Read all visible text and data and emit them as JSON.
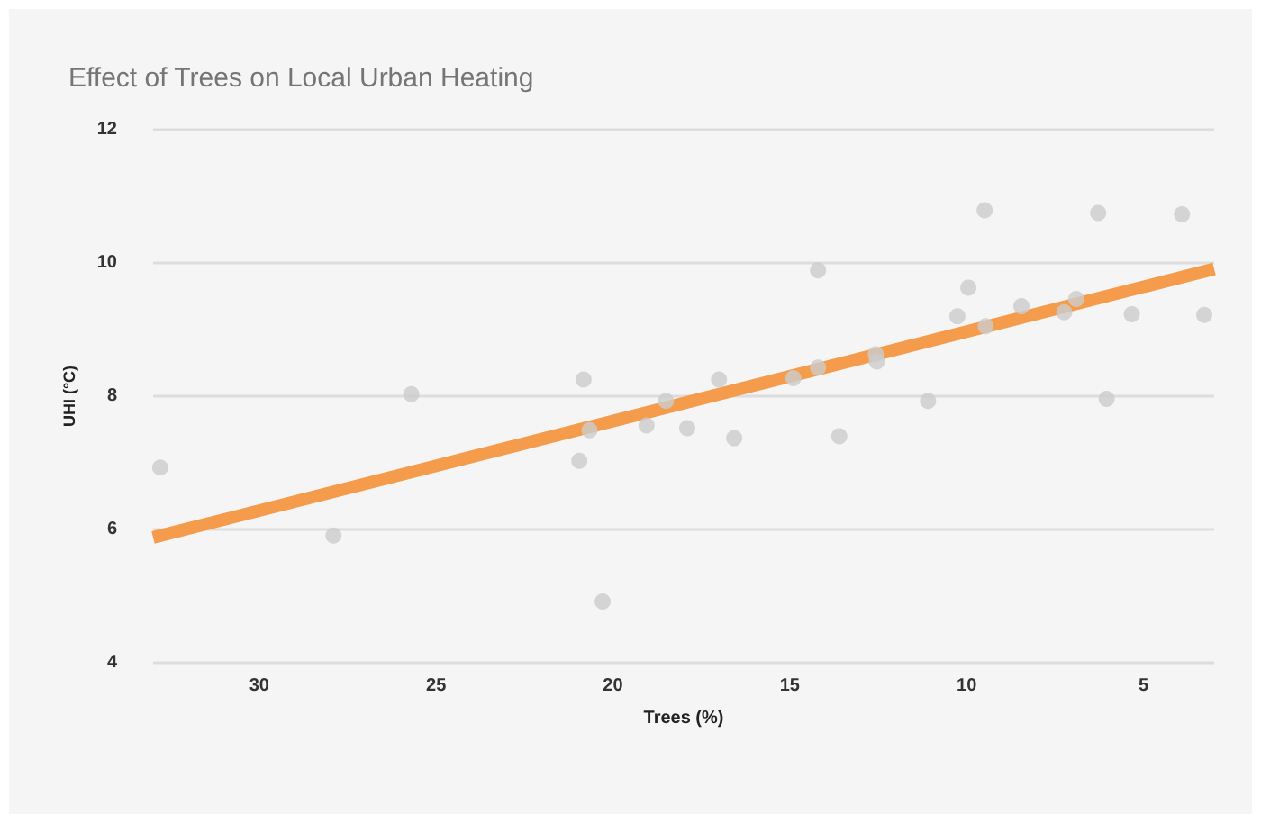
{
  "chart_data": {
    "type": "scatter",
    "title": "Effect of Trees on Local Urban Heating",
    "xlabel": "Trees (%)",
    "ylabel": "UHI (°C)",
    "xlim": [
      33,
      3
    ],
    "xticks": [
      30,
      25,
      20,
      15,
      10,
      5
    ],
    "ylim": [
      4,
      12
    ],
    "yticks": [
      4,
      6,
      8,
      10,
      12
    ],
    "grid": "y",
    "marker": "circle",
    "series": [
      {
        "color": "#cccccc",
        "x": [
          32.8,
          27.9,
          25.7,
          20.83,
          20.95,
          20.66,
          20.29,
          19.05,
          18.5,
          17.9,
          17.0,
          16.57,
          14.9,
          14.2,
          14.2,
          13.6,
          12.57,
          12.54,
          11.09,
          10.26,
          9.95,
          9.49,
          9.46,
          8.45,
          7.24,
          6.9,
          6.28,
          6.04,
          5.33,
          3.91,
          3.28
        ],
        "values": [
          6.93,
          5.91,
          8.03,
          8.25,
          7.03,
          7.49,
          4.92,
          7.56,
          7.93,
          7.52,
          8.25,
          7.37,
          8.27,
          8.43,
          9.89,
          7.4,
          8.63,
          8.52,
          7.93,
          9.2,
          9.63,
          10.79,
          9.05,
          9.35,
          9.26,
          9.46,
          10.75,
          7.96,
          9.23,
          10.73,
          9.22
        ]
      },
      {
        "type": "line",
        "color": "#f59b4c",
        "marker": "none",
        "line_style": "solid",
        "x": [
          33,
          3
        ],
        "values": [
          5.88,
          9.91
        ]
      }
    ]
  }
}
